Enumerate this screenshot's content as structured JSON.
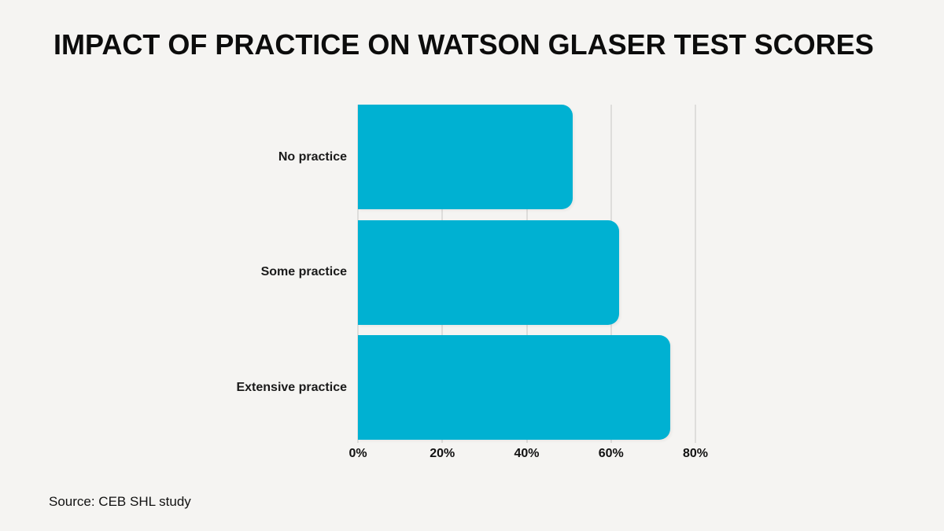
{
  "page": {
    "title": "IMPACT OF PRACTICE ON WATSON GLASER TEST SCORES",
    "source": "Source: CEB SHL study",
    "background_color": "#f5f4f2",
    "gridline_color": "#dedddb",
    "text_color": "#0c0c0c"
  },
  "chart_data": {
    "type": "bar",
    "orientation": "horizontal",
    "title": "IMPACT OF PRACTICE ON WATSON GLASER TEST SCORES",
    "categories": [
      "No practice",
      "Some practice",
      "Extensive practice"
    ],
    "values": [
      51,
      62,
      74
    ],
    "value_unit": "%",
    "xlabel": "",
    "ylabel": "",
    "xlim": [
      0,
      80
    ],
    "x_ticks": [
      0,
      20,
      40,
      60,
      80
    ],
    "x_tick_labels": [
      "0%",
      "20%",
      "40%",
      "60%",
      "80%"
    ],
    "grid": true,
    "legend": false,
    "bar_color": "#00b1d2",
    "source": "Source: CEB SHL study"
  }
}
